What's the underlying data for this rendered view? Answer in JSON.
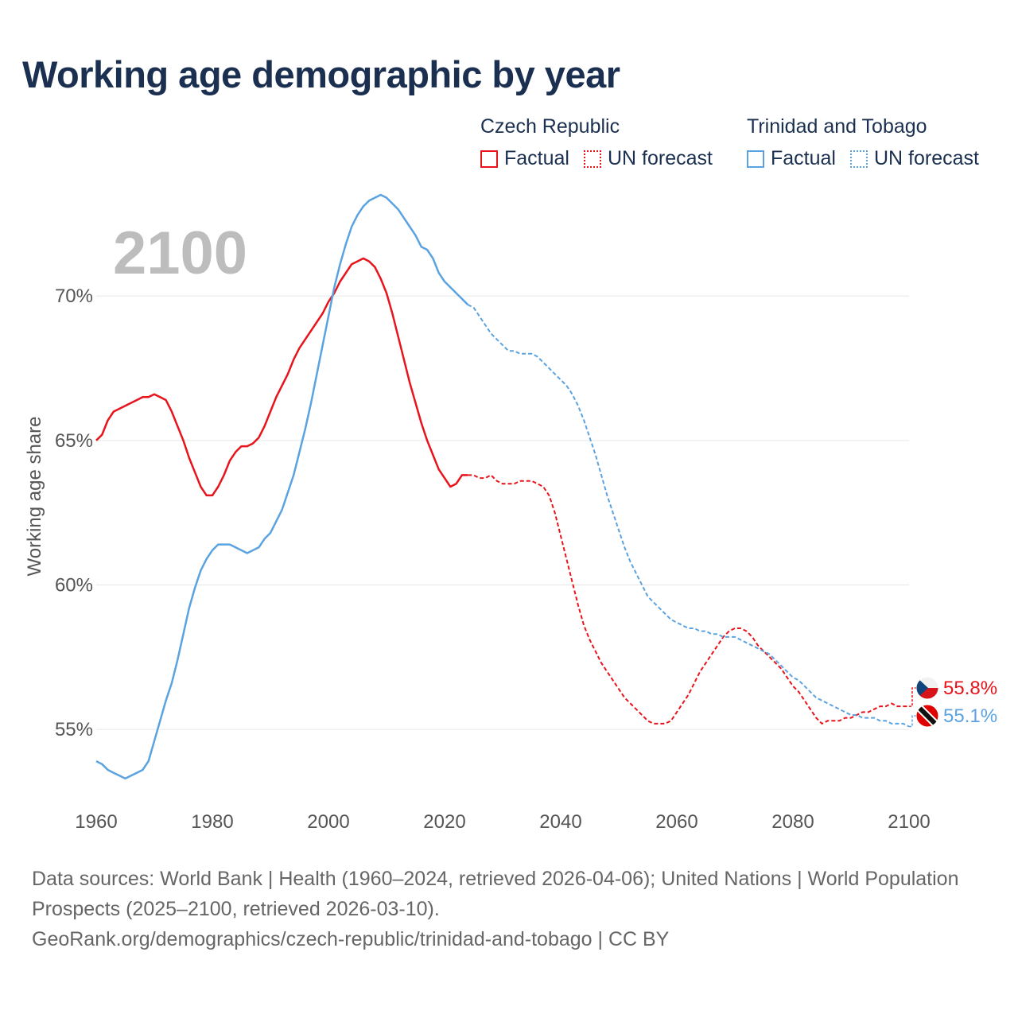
{
  "title": "Working age demographic by year",
  "legend": {
    "groups": [
      {
        "country": "Czech Republic",
        "color": "#e8141c",
        "factual": "Factual",
        "forecast": "UN forecast"
      },
      {
        "country": "Trinidad and Tobago",
        "color": "#5ba3e0",
        "factual": "Factual",
        "forecast": "UN forecast"
      }
    ]
  },
  "chart_data": {
    "type": "line",
    "title": "Working age demographic by year",
    "ylabel": "Working age share",
    "xlabel": "",
    "current_year_label": "2100",
    "xlim": [
      1960,
      2100
    ],
    "ylim": [
      52.5,
      73.5
    ],
    "x_ticks": [
      1960,
      1980,
      2000,
      2020,
      2040,
      2060,
      2080,
      2100
    ],
    "y_ticks": [
      55,
      60,
      65,
      70
    ],
    "y_tick_labels": [
      "55%",
      "60%",
      "65%",
      "70%"
    ],
    "factual_range": [
      1960,
      2024
    ],
    "forecast_range": [
      2025,
      2100
    ],
    "series": [
      {
        "name": "Czech Republic",
        "color": "#e8141c",
        "end_label": "55.8%",
        "flag": "czech-flag",
        "points": [
          [
            1960,
            65.0
          ],
          [
            1961,
            65.2
          ],
          [
            1962,
            65.7
          ],
          [
            1963,
            66.0
          ],
          [
            1964,
            66.1
          ],
          [
            1965,
            66.2
          ],
          [
            1966,
            66.3
          ],
          [
            1967,
            66.4
          ],
          [
            1968,
            66.5
          ],
          [
            1969,
            66.5
          ],
          [
            1970,
            66.6
          ],
          [
            1971,
            66.5
          ],
          [
            1972,
            66.4
          ],
          [
            1973,
            66.0
          ],
          [
            1974,
            65.5
          ],
          [
            1975,
            65.0
          ],
          [
            1976,
            64.4
          ],
          [
            1977,
            63.9
          ],
          [
            1978,
            63.4
          ],
          [
            1979,
            63.1
          ],
          [
            1980,
            63.1
          ],
          [
            1981,
            63.4
          ],
          [
            1982,
            63.8
          ],
          [
            1983,
            64.3
          ],
          [
            1984,
            64.6
          ],
          [
            1985,
            64.8
          ],
          [
            1986,
            64.8
          ],
          [
            1987,
            64.9
          ],
          [
            1988,
            65.1
          ],
          [
            1989,
            65.5
          ],
          [
            1990,
            66.0
          ],
          [
            1991,
            66.5
          ],
          [
            1992,
            66.9
          ],
          [
            1993,
            67.3
          ],
          [
            1994,
            67.8
          ],
          [
            1995,
            68.2
          ],
          [
            1996,
            68.5
          ],
          [
            1997,
            68.8
          ],
          [
            1998,
            69.1
          ],
          [
            1999,
            69.4
          ],
          [
            2000,
            69.8
          ],
          [
            2001,
            70.1
          ],
          [
            2002,
            70.5
          ],
          [
            2003,
            70.8
          ],
          [
            2004,
            71.1
          ],
          [
            2005,
            71.2
          ],
          [
            2006,
            71.3
          ],
          [
            2007,
            71.2
          ],
          [
            2008,
            71.0
          ],
          [
            2009,
            70.6
          ],
          [
            2010,
            70.1
          ],
          [
            2011,
            69.4
          ],
          [
            2012,
            68.6
          ],
          [
            2013,
            67.8
          ],
          [
            2014,
            67.0
          ],
          [
            2015,
            66.3
          ],
          [
            2016,
            65.6
          ],
          [
            2017,
            65.0
          ],
          [
            2018,
            64.5
          ],
          [
            2019,
            64.0
          ],
          [
            2020,
            63.7
          ],
          [
            2021,
            63.4
          ],
          [
            2022,
            63.5
          ],
          [
            2023,
            63.8
          ],
          [
            2024,
            63.8
          ],
          [
            2025,
            63.8
          ],
          [
            2026,
            63.7
          ],
          [
            2027,
            63.7
          ],
          [
            2028,
            63.8
          ],
          [
            2029,
            63.6
          ],
          [
            2030,
            63.5
          ],
          [
            2031,
            63.5
          ],
          [
            2032,
            63.5
          ],
          [
            2033,
            63.6
          ],
          [
            2034,
            63.6
          ],
          [
            2035,
            63.6
          ],
          [
            2036,
            63.5
          ],
          [
            2037,
            63.4
          ],
          [
            2038,
            63.1
          ],
          [
            2039,
            62.5
          ],
          [
            2040,
            61.7
          ],
          [
            2041,
            60.9
          ],
          [
            2042,
            60.1
          ],
          [
            2043,
            59.3
          ],
          [
            2044,
            58.6
          ],
          [
            2045,
            58.1
          ],
          [
            2046,
            57.7
          ],
          [
            2047,
            57.3
          ],
          [
            2048,
            57.0
          ],
          [
            2049,
            56.7
          ],
          [
            2050,
            56.4
          ],
          [
            2051,
            56.1
          ],
          [
            2052,
            55.9
          ],
          [
            2053,
            55.7
          ],
          [
            2054,
            55.5
          ],
          [
            2055,
            55.3
          ],
          [
            2056,
            55.2
          ],
          [
            2057,
            55.2
          ],
          [
            2058,
            55.2
          ],
          [
            2059,
            55.3
          ],
          [
            2060,
            55.6
          ],
          [
            2061,
            55.9
          ],
          [
            2062,
            56.2
          ],
          [
            2063,
            56.6
          ],
          [
            2064,
            57.0
          ],
          [
            2065,
            57.3
          ],
          [
            2066,
            57.6
          ],
          [
            2067,
            57.9
          ],
          [
            2068,
            58.2
          ],
          [
            2069,
            58.4
          ],
          [
            2070,
            58.5
          ],
          [
            2071,
            58.5
          ],
          [
            2072,
            58.4
          ],
          [
            2073,
            58.2
          ],
          [
            2074,
            57.9
          ],
          [
            2075,
            57.7
          ],
          [
            2076,
            57.5
          ],
          [
            2077,
            57.3
          ],
          [
            2078,
            57.1
          ],
          [
            2079,
            56.8
          ],
          [
            2080,
            56.5
          ],
          [
            2081,
            56.3
          ],
          [
            2082,
            56.0
          ],
          [
            2083,
            55.7
          ],
          [
            2084,
            55.4
          ],
          [
            2085,
            55.2
          ],
          [
            2086,
            55.3
          ],
          [
            2087,
            55.3
          ],
          [
            2088,
            55.3
          ],
          [
            2089,
            55.4
          ],
          [
            2090,
            55.4
          ],
          [
            2091,
            55.5
          ],
          [
            2092,
            55.6
          ],
          [
            2093,
            55.6
          ],
          [
            2094,
            55.7
          ],
          [
            2095,
            55.8
          ],
          [
            2096,
            55.8
          ],
          [
            2097,
            55.9
          ],
          [
            2098,
            55.8
          ],
          [
            2099,
            55.8
          ],
          [
            2100,
            55.8
          ]
        ]
      },
      {
        "name": "Trinidad and Tobago",
        "color": "#5ba3e0",
        "end_label": "55.1%",
        "flag": "trinidad-flag",
        "points": [
          [
            1960,
            53.9
          ],
          [
            1961,
            53.8
          ],
          [
            1962,
            53.6
          ],
          [
            1963,
            53.5
          ],
          [
            1964,
            53.4
          ],
          [
            1965,
            53.3
          ],
          [
            1966,
            53.4
          ],
          [
            1967,
            53.5
          ],
          [
            1968,
            53.6
          ],
          [
            1969,
            53.9
          ],
          [
            1970,
            54.6
          ],
          [
            1971,
            55.3
          ],
          [
            1972,
            56.0
          ],
          [
            1973,
            56.6
          ],
          [
            1974,
            57.4
          ],
          [
            1975,
            58.3
          ],
          [
            1976,
            59.2
          ],
          [
            1977,
            59.9
          ],
          [
            1978,
            60.5
          ],
          [
            1979,
            60.9
          ],
          [
            1980,
            61.2
          ],
          [
            1981,
            61.4
          ],
          [
            1982,
            61.4
          ],
          [
            1983,
            61.4
          ],
          [
            1984,
            61.3
          ],
          [
            1985,
            61.2
          ],
          [
            1986,
            61.1
          ],
          [
            1987,
            61.2
          ],
          [
            1988,
            61.3
          ],
          [
            1989,
            61.6
          ],
          [
            1990,
            61.8
          ],
          [
            1991,
            62.2
          ],
          [
            1992,
            62.6
          ],
          [
            1993,
            63.2
          ],
          [
            1994,
            63.8
          ],
          [
            1995,
            64.6
          ],
          [
            1996,
            65.4
          ],
          [
            1997,
            66.3
          ],
          [
            1998,
            67.3
          ],
          [
            1999,
            68.3
          ],
          [
            2000,
            69.3
          ],
          [
            2001,
            70.3
          ],
          [
            2002,
            71.1
          ],
          [
            2003,
            71.8
          ],
          [
            2004,
            72.4
          ],
          [
            2005,
            72.8
          ],
          [
            2006,
            73.1
          ],
          [
            2007,
            73.3
          ],
          [
            2008,
            73.4
          ],
          [
            2009,
            73.5
          ],
          [
            2010,
            73.4
          ],
          [
            2011,
            73.2
          ],
          [
            2012,
            73.0
          ],
          [
            2013,
            72.7
          ],
          [
            2014,
            72.4
          ],
          [
            2015,
            72.1
          ],
          [
            2016,
            71.7
          ],
          [
            2017,
            71.6
          ],
          [
            2018,
            71.3
          ],
          [
            2019,
            70.8
          ],
          [
            2020,
            70.5
          ],
          [
            2021,
            70.3
          ],
          [
            2022,
            70.1
          ],
          [
            2023,
            69.9
          ],
          [
            2024,
            69.7
          ],
          [
            2025,
            69.6
          ],
          [
            2026,
            69.3
          ],
          [
            2027,
            69.0
          ],
          [
            2028,
            68.7
          ],
          [
            2029,
            68.5
          ],
          [
            2030,
            68.3
          ],
          [
            2031,
            68.1
          ],
          [
            2032,
            68.1
          ],
          [
            2033,
            68.0
          ],
          [
            2034,
            68.0
          ],
          [
            2035,
            68.0
          ],
          [
            2036,
            67.9
          ],
          [
            2037,
            67.7
          ],
          [
            2038,
            67.5
          ],
          [
            2039,
            67.3
          ],
          [
            2040,
            67.1
          ],
          [
            2041,
            66.9
          ],
          [
            2042,
            66.6
          ],
          [
            2043,
            66.2
          ],
          [
            2044,
            65.7
          ],
          [
            2045,
            65.1
          ],
          [
            2046,
            64.5
          ],
          [
            2047,
            63.8
          ],
          [
            2048,
            63.1
          ],
          [
            2049,
            62.5
          ],
          [
            2050,
            61.9
          ],
          [
            2051,
            61.3
          ],
          [
            2052,
            60.8
          ],
          [
            2053,
            60.4
          ],
          [
            2054,
            60.0
          ],
          [
            2055,
            59.6
          ],
          [
            2056,
            59.4
          ],
          [
            2057,
            59.2
          ],
          [
            2058,
            59.0
          ],
          [
            2059,
            58.8
          ],
          [
            2060,
            58.7
          ],
          [
            2061,
            58.6
          ],
          [
            2062,
            58.5
          ],
          [
            2063,
            58.5
          ],
          [
            2064,
            58.4
          ],
          [
            2065,
            58.4
          ],
          [
            2066,
            58.3
          ],
          [
            2067,
            58.3
          ],
          [
            2068,
            58.2
          ],
          [
            2069,
            58.2
          ],
          [
            2070,
            58.2
          ],
          [
            2071,
            58.1
          ],
          [
            2072,
            58.0
          ],
          [
            2073,
            57.9
          ],
          [
            2074,
            57.8
          ],
          [
            2075,
            57.7
          ],
          [
            2076,
            57.6
          ],
          [
            2077,
            57.4
          ],
          [
            2078,
            57.2
          ],
          [
            2079,
            57.0
          ],
          [
            2080,
            56.8
          ],
          [
            2081,
            56.7
          ],
          [
            2082,
            56.5
          ],
          [
            2083,
            56.3
          ],
          [
            2084,
            56.1
          ],
          [
            2085,
            56.0
          ],
          [
            2086,
            55.9
          ],
          [
            2087,
            55.8
          ],
          [
            2088,
            55.7
          ],
          [
            2089,
            55.6
          ],
          [
            2090,
            55.5
          ],
          [
            2091,
            55.5
          ],
          [
            2092,
            55.4
          ],
          [
            2093,
            55.4
          ],
          [
            2094,
            55.4
          ],
          [
            2095,
            55.3
          ],
          [
            2096,
            55.3
          ],
          [
            2097,
            55.2
          ],
          [
            2098,
            55.2
          ],
          [
            2099,
            55.2
          ],
          [
            2100,
            55.1
          ]
        ]
      }
    ]
  },
  "footer": {
    "sources": "Data sources: World Bank | Health (1960–2024, retrieved 2026-04-06); United Nations | World Population Prospects (2025–2100, retrieved 2026-03-10).",
    "attribution": "GeoRank.org/demographics/czech-republic/trinidad-and-tobago | CC BY"
  }
}
